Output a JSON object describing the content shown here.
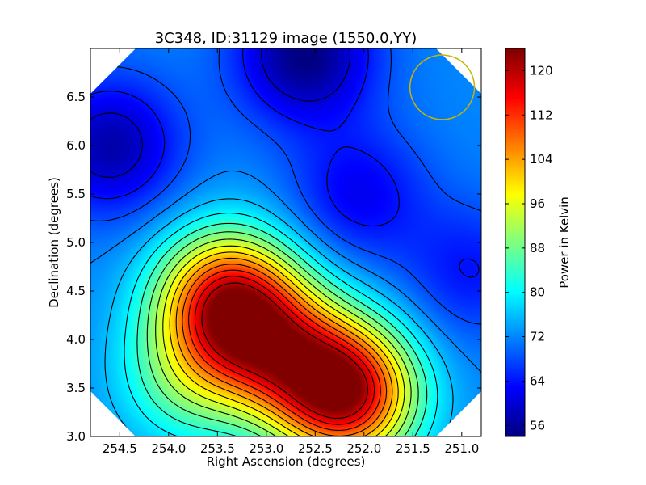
{
  "chart_data": {
    "type": "heatmap",
    "title": "3C348, ID:31129 image (1550.0,YY)",
    "xlabel": "Right Ascension (degrees)",
    "ylabel": "Declination (degrees)",
    "xlim": [
      254.8,
      250.8
    ],
    "ylim": [
      3.0,
      7.0
    ],
    "x_ticks": [
      "254.5",
      "254.0",
      "253.5",
      "253.0",
      "252.5",
      "252.0",
      "251.5",
      "251.0"
    ],
    "x_tick_values": [
      254.5,
      254.0,
      253.5,
      253.0,
      252.5,
      252.0,
      251.5,
      251.0
    ],
    "y_ticks": [
      "3.0",
      "3.5",
      "4.0",
      "4.5",
      "5.0",
      "5.5",
      "6.0",
      "6.5"
    ],
    "y_tick_values": [
      3.0,
      3.5,
      4.0,
      4.5,
      5.0,
      5.5,
      6.0,
      6.5
    ],
    "colorbar": {
      "label": "Power in Kelvin",
      "range": [
        54,
        124
      ],
      "ticks": [
        "56",
        "64",
        "72",
        "80",
        "88",
        "96",
        "104",
        "112",
        "120"
      ],
      "tick_values": [
        56,
        64,
        72,
        80,
        88,
        96,
        104,
        112,
        120
      ],
      "colormap": "jet"
    },
    "contour_levels": [
      60,
      64,
      68,
      72,
      76,
      80,
      84,
      88,
      92,
      96,
      100,
      104,
      108,
      112,
      116,
      120
    ],
    "contour_color": "#000000",
    "field_components": {
      "background": 72,
      "features": [
        {
          "ra": 252.2,
          "dec": 3.45,
          "value": 122
        },
        {
          "ra": 253.4,
          "dec": 4.4,
          "value": 114
        },
        {
          "ra": 252.9,
          "dec": 3.9,
          "value": 100
        },
        {
          "ra": 254.6,
          "dec": 6.0,
          "value": 57
        },
        {
          "ra": 252.6,
          "dec": 6.95,
          "value": 54
        },
        {
          "ra": 252.05,
          "dec": 5.5,
          "value": 62
        },
        {
          "ra": 250.9,
          "dec": 4.7,
          "value": 64
        },
        {
          "ra": 253.8,
          "dec": 3.6,
          "value": 86
        }
      ]
    },
    "beam_circle": {
      "ra": 251.2,
      "dec": 6.6,
      "radius_deg": 0.33,
      "color": "#c8b400"
    }
  }
}
